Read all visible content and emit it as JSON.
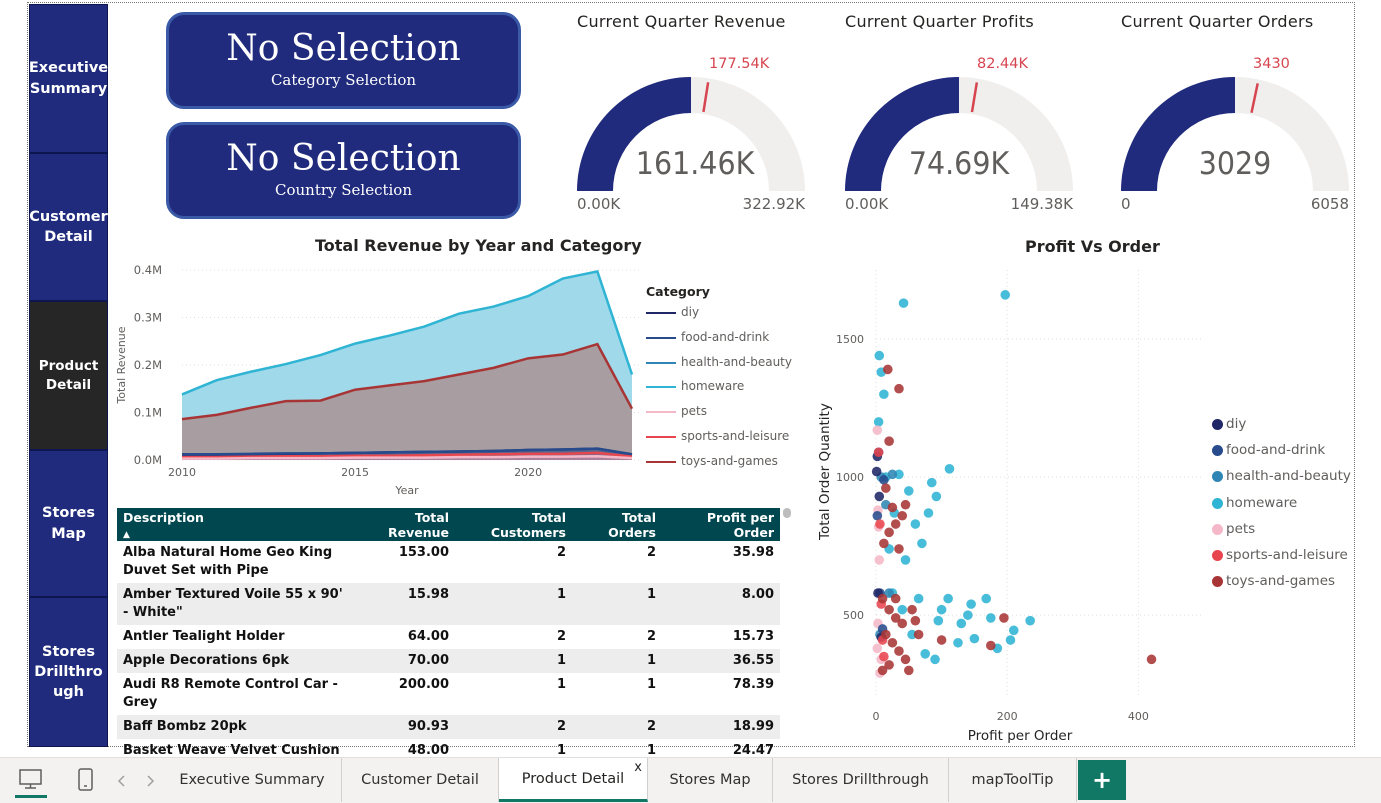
{
  "nav": {
    "items": [
      {
        "label": "Executive Summary"
      },
      {
        "label": "Customer Detail"
      },
      {
        "label": "Product Detail"
      },
      {
        "label": "Stores Map"
      },
      {
        "label": "Stores Drillthrough"
      }
    ]
  },
  "slicers": [
    {
      "value": "No Selection",
      "caption": "Category Selection"
    },
    {
      "value": "No Selection",
      "caption": "Country Selection"
    }
  ],
  "gauges": [
    {
      "title": "Current Quarter Revenue",
      "value_label": "161.46K",
      "min_label": "0.00K",
      "max_label": "322.92K",
      "target_label": "177.54K",
      "value": 161.46,
      "min": 0,
      "max": 322.92,
      "target": 177.54
    },
    {
      "title": "Current Quarter Profits",
      "value_label": "74.69K",
      "min_label": "0.00K",
      "max_label": "149.38K",
      "target_label": "82.44K",
      "value": 74.69,
      "min": 0,
      "max": 149.38,
      "target": 82.44
    },
    {
      "title": "Current Quarter Orders",
      "value_label": "3029",
      "min_label": "0",
      "max_label": "6058",
      "target_label": "3430",
      "value": 3029,
      "min": 0,
      "max": 6058,
      "target": 3430
    }
  ],
  "colors": {
    "navy": "#212b7d",
    "gauge_bg": "#f0efee",
    "target": "#d64550",
    "diy": "#1f2766",
    "food-and-drink": "#274b8c",
    "health-and-beauty": "#2f86b4",
    "homeware": "#2fb4d4",
    "pets": "#f5b8c8",
    "sports-and-leisure": "#e8464f",
    "toys-and-games": "#a83535",
    "table_header": "#004750",
    "tab_accent": "#117865"
  },
  "chart_data": [
    {
      "type": "area",
      "title": "Total Revenue by Year and Category",
      "xlabel": "Year",
      "ylabel": "Total Revenue",
      "xlim": [
        2010,
        2023
      ],
      "ylim": [
        0,
        0.4
      ],
      "x_ticks": [
        "2010",
        "2015",
        "2020"
      ],
      "y_ticks": [
        "0.0M",
        "0.1M",
        "0.2M",
        "0.3M",
        "0.4M"
      ],
      "legend_title": "Category",
      "legend_position": "right",
      "x": [
        2010,
        2011,
        2012,
        2013,
        2014,
        2015,
        2016,
        2017,
        2018,
        2019,
        2020,
        2021,
        2022,
        2023
      ],
      "series": [
        {
          "name": "diy",
          "values": [
            0.01,
            0.011,
            0.012,
            0.013,
            0.014,
            0.015,
            0.016,
            0.017,
            0.018,
            0.019,
            0.021,
            0.022,
            0.024,
            0.012
          ]
        },
        {
          "name": "food-and-drink",
          "values": [
            0.012,
            0.012,
            0.013,
            0.014,
            0.014,
            0.015,
            0.016,
            0.017,
            0.018,
            0.019,
            0.021,
            0.022,
            0.024,
            0.012
          ]
        },
        {
          "name": "health-and-beauty",
          "values": [
            0.005,
            0.005,
            0.006,
            0.006,
            0.007,
            0.007,
            0.008,
            0.008,
            0.009,
            0.009,
            0.01,
            0.011,
            0.012,
            0.006
          ]
        },
        {
          "name": "homeware",
          "values": [
            0.138,
            0.168,
            0.186,
            0.202,
            0.221,
            0.245,
            0.262,
            0.281,
            0.308,
            0.323,
            0.345,
            0.382,
            0.397,
            0.18
          ]
        },
        {
          "name": "pets",
          "values": [
            0.003,
            0.003,
            0.004,
            0.004,
            0.004,
            0.005,
            0.005,
            0.005,
            0.006,
            0.006,
            0.007,
            0.007,
            0.008,
            0.004
          ]
        },
        {
          "name": "sports-and-leisure",
          "values": [
            0.006,
            0.006,
            0.007,
            0.008,
            0.008,
            0.009,
            0.009,
            0.01,
            0.011,
            0.012,
            0.013,
            0.013,
            0.015,
            0.007
          ]
        },
        {
          "name": "toys-and-games",
          "values": [
            0.086,
            0.095,
            0.11,
            0.124,
            0.125,
            0.148,
            0.157,
            0.166,
            0.18,
            0.194,
            0.214,
            0.222,
            0.244,
            0.108
          ]
        }
      ],
      "grid": true
    },
    {
      "type": "scatter",
      "title": "Profit Vs Order",
      "xlabel": "Profit per Order",
      "ylabel": "Total Order Quantity",
      "xlim": [
        0,
        500
      ],
      "ylim": [
        200,
        1750
      ],
      "x_ticks": [
        "0",
        "200",
        "400"
      ],
      "y_ticks": [
        "500",
        "1000",
        "1500"
      ],
      "legend_position": "right",
      "series": [
        {
          "name": "diy",
          "points": [
            [
              2,
              1075
            ],
            [
              5,
              930
            ],
            [
              3,
              580
            ],
            [
              8,
              420
            ],
            [
              1,
              1020
            ]
          ]
        },
        {
          "name": "food-and-drink",
          "points": [
            [
              4,
              1090
            ],
            [
              6,
              580
            ],
            [
              10,
              450
            ],
            [
              2,
              860
            ],
            [
              12,
              990
            ]
          ]
        },
        {
          "name": "health-and-beauty",
          "points": [
            [
              8,
              1000
            ],
            [
              15,
              900
            ],
            [
              20,
              580
            ],
            [
              6,
              430
            ],
            [
              25,
              1010
            ]
          ]
        },
        {
          "name": "homeware",
          "points": [
            [
              42,
              1630
            ],
            [
              197,
              1660
            ],
            [
              5,
              1440
            ],
            [
              8,
              1380
            ],
            [
              4,
              1200
            ],
            [
              12,
              1300
            ],
            [
              112,
              1030
            ],
            [
              92,
              930
            ],
            [
              60,
              830
            ],
            [
              80,
              870
            ],
            [
              35,
              1010
            ],
            [
              50,
              950
            ],
            [
              70,
              760
            ],
            [
              110,
              560
            ],
            [
              145,
              540
            ],
            [
              168,
              560
            ],
            [
              235,
              480
            ],
            [
              210,
              445
            ],
            [
              175,
              490
            ],
            [
              130,
              470
            ],
            [
              95,
              480
            ],
            [
              125,
              400
            ],
            [
              75,
              360
            ],
            [
              90,
              340
            ],
            [
              150,
              415
            ],
            [
              185,
              380
            ],
            [
              205,
              410
            ],
            [
              55,
              430
            ],
            [
              40,
              520
            ],
            [
              25,
              580
            ],
            [
              65,
              560
            ],
            [
              15,
              1000
            ],
            [
              28,
              870
            ],
            [
              85,
              980
            ],
            [
              100,
              520
            ],
            [
              140,
              500
            ],
            [
              20,
              740
            ],
            [
              45,
              700
            ]
          ]
        },
        {
          "name": "pets",
          "points": [
            [
              2,
              1170
            ],
            [
              3,
              880
            ],
            [
              4,
              820
            ],
            [
              5,
              700
            ],
            [
              3,
              470
            ],
            [
              2,
              380
            ],
            [
              6,
              290
            ],
            [
              8,
              340
            ]
          ]
        },
        {
          "name": "sports-and-leisure",
          "points": [
            [
              4,
              1090
            ],
            [
              6,
              830
            ],
            [
              8,
              540
            ],
            [
              10,
              410
            ],
            [
              12,
              350
            ]
          ]
        },
        {
          "name": "toys-and-games",
          "points": [
            [
              18,
              1390
            ],
            [
              35,
              1320
            ],
            [
              20,
              1130
            ],
            [
              15,
              960
            ],
            [
              25,
              890
            ],
            [
              30,
              830
            ],
            [
              20,
              800
            ],
            [
              35,
              740
            ],
            [
              45,
              900
            ],
            [
              10,
              560
            ],
            [
              20,
              520
            ],
            [
              30,
              490
            ],
            [
              40,
              470
            ],
            [
              15,
              430
            ],
            [
              25,
              400
            ],
            [
              35,
              370
            ],
            [
              45,
              340
            ],
            [
              20,
              320
            ],
            [
              10,
              300
            ],
            [
              60,
              480
            ],
            [
              65,
              430
            ],
            [
              100,
              410
            ],
            [
              195,
              490
            ],
            [
              175,
              390
            ],
            [
              420,
              340
            ],
            [
              50,
              300
            ],
            [
              30,
              560
            ],
            [
              55,
              520
            ],
            [
              40,
              860
            ],
            [
              12,
              760
            ]
          ]
        }
      ],
      "grid": true
    }
  ],
  "table": {
    "headers": [
      "Description",
      "Total Revenue",
      "Total Customers",
      "Total Orders",
      "Profit per Order"
    ],
    "sort_indicator": "▲",
    "rows": [
      {
        "description": "Alba Natural Home Geo King Duvet Set with Pipe",
        "revenue": "153.00",
        "customers": "2",
        "orders": "2",
        "ppo": "35.98"
      },
      {
        "description": "Amber Textured Voile 55 x 90' - White\"",
        "revenue": "15.98",
        "customers": "1",
        "orders": "1",
        "ppo": "8.00"
      },
      {
        "description": "Antler Tealight Holder",
        "revenue": "64.00",
        "customers": "2",
        "orders": "2",
        "ppo": "15.73"
      },
      {
        "description": "Apple Decorations 6pk",
        "revenue": "70.00",
        "customers": "1",
        "orders": "1",
        "ppo": "36.55"
      },
      {
        "description": "Audi R8 Remote Control Car - Grey",
        "revenue": "200.00",
        "customers": "1",
        "orders": "1",
        "ppo": "78.39"
      },
      {
        "description": "Baff Bombz 20pk",
        "revenue": "90.93",
        "customers": "2",
        "orders": "2",
        "ppo": "18.99"
      },
      {
        "description": "Basket Weave Velvet Cushion",
        "revenue": "48.00",
        "customers": "1",
        "orders": "1",
        "ppo": "24.47"
      }
    ]
  },
  "tabs": [
    {
      "label": "Executive Summary"
    },
    {
      "label": "Customer Detail"
    },
    {
      "label": "Product Detail",
      "close": "x"
    },
    {
      "label": "Stores Map"
    },
    {
      "label": "Stores Drillthrough"
    },
    {
      "label": "mapToolTip"
    }
  ],
  "add_tab_label": "+",
  "icons": {
    "desktop": "desktop-icon",
    "phone": "phone-icon",
    "prev": "chevron-left-icon",
    "next": "chevron-right-icon"
  }
}
